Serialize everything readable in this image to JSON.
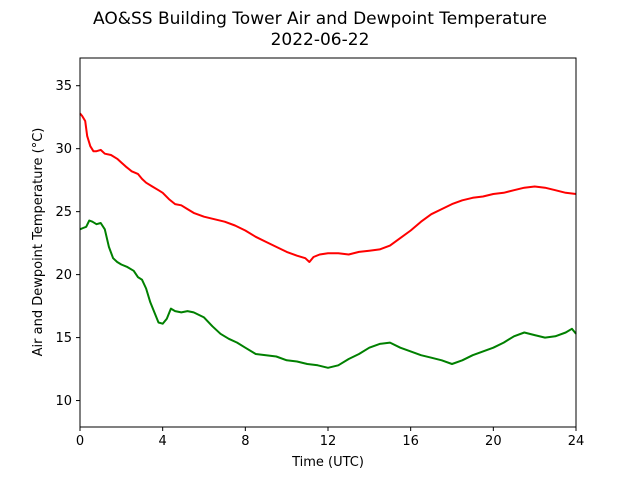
{
  "chart_data": {
    "type": "line",
    "title": "AO&SS Building Tower Air and Dewpoint Temperature",
    "subtitle": "2022-06-22",
    "xlabel": "Time (UTC)",
    "ylabel": "Air and Dewpoint Temperature (°C)",
    "xlim": [
      0,
      24
    ],
    "ylim": [
      7.9,
      37.2
    ],
    "xticks": [
      0,
      4,
      8,
      12,
      16,
      20,
      24
    ],
    "yticks": [
      10,
      15,
      20,
      25,
      30,
      35
    ],
    "grid": false,
    "legend": "none",
    "series": [
      {
        "color": "#ff0000",
        "x": [
          0,
          0.1,
          0.25,
          0.35,
          0.5,
          0.65,
          0.8,
          1.0,
          1.2,
          1.5,
          1.8,
          2.0,
          2.2,
          2.5,
          2.8,
          3.0,
          3.2,
          3.5,
          3.8,
          4.0,
          4.3,
          4.6,
          4.9,
          5.2,
          5.5,
          6.0,
          6.5,
          7.0,
          7.5,
          8.0,
          8.5,
          9.0,
          9.5,
          10.0,
          10.5,
          10.9,
          11.1,
          11.3,
          11.6,
          12.0,
          12.5,
          13.0,
          13.5,
          14.0,
          14.5,
          15.0,
          15.5,
          16.0,
          16.5,
          17.0,
          17.5,
          18.0,
          18.5,
          19.0,
          19.5,
          20.0,
          20.5,
          21.0,
          21.5,
          22.0,
          22.5,
          23.0,
          23.5,
          24.0
        ],
        "values": [
          32.8,
          32.6,
          32.2,
          31.0,
          30.2,
          29.8,
          29.8,
          29.9,
          29.6,
          29.5,
          29.2,
          28.9,
          28.6,
          28.2,
          28.0,
          27.6,
          27.3,
          27.0,
          26.7,
          26.5,
          26.0,
          25.6,
          25.5,
          25.2,
          24.9,
          24.6,
          24.4,
          24.2,
          23.9,
          23.5,
          23.0,
          22.6,
          22.2,
          21.8,
          21.5,
          21.3,
          21.0,
          21.4,
          21.6,
          21.7,
          21.7,
          21.6,
          21.8,
          21.9,
          22.0,
          22.3,
          22.9,
          23.5,
          24.2,
          24.8,
          25.2,
          25.6,
          25.9,
          26.1,
          26.2,
          26.4,
          26.5,
          26.7,
          26.9,
          27.0,
          26.9,
          26.7,
          26.5,
          26.4
        ]
      },
      {
        "color": "#008000",
        "x": [
          0,
          0.15,
          0.3,
          0.45,
          0.6,
          0.8,
          1.0,
          1.2,
          1.4,
          1.6,
          1.8,
          2.0,
          2.3,
          2.6,
          2.8,
          3.0,
          3.2,
          3.4,
          3.6,
          3.8,
          4.0,
          4.2,
          4.4,
          4.6,
          4.9,
          5.2,
          5.5,
          6.0,
          6.4,
          6.8,
          7.2,
          7.6,
          8.0,
          8.5,
          9.0,
          9.5,
          10.0,
          10.5,
          11.0,
          11.5,
          12.0,
          12.5,
          13.0,
          13.5,
          14.0,
          14.5,
          15.0,
          15.5,
          16.0,
          16.5,
          17.0,
          17.5,
          18.0,
          18.5,
          19.0,
          19.5,
          20.0,
          20.5,
          21.0,
          21.5,
          22.0,
          22.5,
          23.0,
          23.5,
          23.8,
          24.0
        ],
        "values": [
          23.6,
          23.7,
          23.8,
          24.3,
          24.2,
          24.0,
          24.1,
          23.6,
          22.2,
          21.3,
          21.0,
          20.8,
          20.6,
          20.3,
          19.8,
          19.6,
          18.9,
          17.8,
          17.0,
          16.2,
          16.1,
          16.5,
          17.3,
          17.1,
          17.0,
          17.1,
          17.0,
          16.6,
          15.9,
          15.3,
          14.9,
          14.6,
          14.2,
          13.7,
          13.6,
          13.5,
          13.2,
          13.1,
          12.9,
          12.8,
          12.6,
          12.8,
          13.3,
          13.7,
          14.2,
          14.5,
          14.6,
          14.2,
          13.9,
          13.6,
          13.4,
          13.2,
          12.9,
          13.2,
          13.6,
          13.9,
          14.2,
          14.6,
          15.1,
          15.4,
          15.2,
          15.0,
          15.1,
          15.4,
          15.7,
          15.3
        ]
      }
    ]
  }
}
